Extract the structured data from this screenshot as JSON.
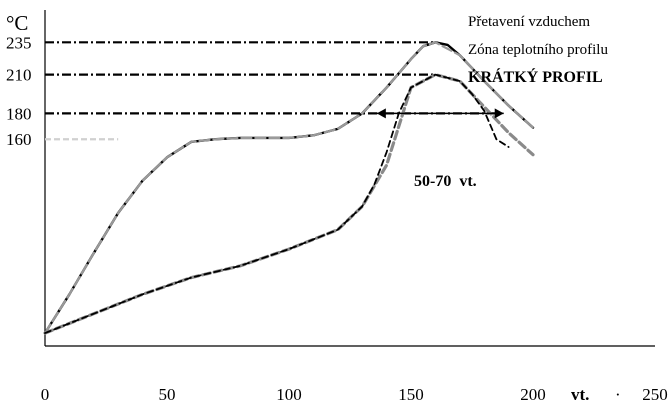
{
  "chart_data": {
    "type": "line",
    "y_unit": "°C",
    "x_unit": "vt.",
    "x_ticks": [
      "0",
      "50",
      "100",
      "150",
      "200",
      "250"
    ],
    "y_ticks": [
      "235",
      "210",
      "180",
      "160"
    ],
    "xlim": [
      0,
      250
    ],
    "ylim": [
      0,
      260
    ],
    "grid": false,
    "legend": "none",
    "annotations": [
      {
        "text": "Přetavení vzduchem"
      },
      {
        "text": "Zóna teplotního profilu"
      },
      {
        "text": "KRÁTKÝ PROFIL",
        "bold": true
      },
      {
        "text": "50-70  vt.",
        "bold": true
      }
    ],
    "reference_lines": [
      {
        "y": 235,
        "style": "dash-dot",
        "x_end": 160
      },
      {
        "y": 210,
        "style": "dash-dot",
        "x_end": 160
      },
      {
        "y": 180,
        "style": "dash-dot",
        "x_end": 188
      },
      {
        "y": 160,
        "style": "dashed-light",
        "x_end": 30
      }
    ],
    "bracket": {
      "y": 180,
      "x_from": 136,
      "x_to": 188,
      "label": "50-70  vt."
    },
    "series": [
      {
        "style": "solid",
        "color": "#000000",
        "x": [
          0,
          10,
          20,
          30,
          40,
          50,
          60,
          70,
          80,
          90,
          100,
          110,
          120,
          130,
          140,
          150,
          155,
          160,
          165,
          170,
          180,
          190,
          200
        ],
        "y": [
          10,
          40,
          72,
          103,
          128,
          146,
          158,
          160,
          161,
          161,
          161,
          163,
          168,
          180,
          200,
          222,
          232,
          235,
          233,
          225,
          205,
          186,
          169
        ]
      },
      {
        "style": "dashed-grey",
        "color": "#9a9a9a",
        "x": [
          0,
          10,
          20,
          30,
          40,
          50,
          60,
          70,
          80,
          90,
          100,
          110,
          120,
          130,
          140,
          150,
          155,
          160,
          170,
          180,
          190,
          200
        ],
        "y": [
          10,
          40,
          72,
          103,
          128,
          146,
          158,
          160,
          161,
          161,
          161,
          163,
          168,
          180,
          200,
          222,
          232,
          235,
          225,
          205,
          186,
          169
        ]
      },
      {
        "style": "dashed-grey-thick",
        "color": "#8a8a8a",
        "x": [
          0,
          20,
          40,
          60,
          80,
          100,
          120,
          130,
          140,
          145,
          150,
          160,
          170,
          180,
          190,
          200
        ],
        "y": [
          10,
          25,
          40,
          53,
          62,
          75,
          90,
          108,
          140,
          170,
          200,
          210,
          205,
          185,
          165,
          148
        ]
      },
      {
        "style": "dashed",
        "color": "#000000",
        "x": [
          0,
          20,
          40,
          60,
          80,
          100,
          120,
          130,
          135,
          140,
          145,
          150,
          160,
          170,
          175,
          180,
          185,
          190
        ],
        "y": [
          10,
          25,
          40,
          53,
          62,
          75,
          90,
          108,
          125,
          150,
          180,
          200,
          210,
          205,
          195,
          182,
          160,
          154
        ]
      }
    ]
  }
}
